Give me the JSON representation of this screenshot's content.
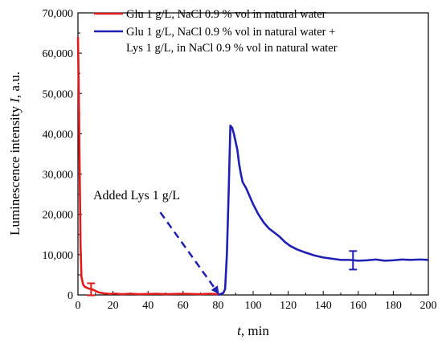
{
  "chart_data": {
    "type": "line",
    "xlabel": "t, min",
    "ylabel": "Luminescence intensity I, a.u.",
    "xlim": [
      0,
      200
    ],
    "ylim": [
      0,
      70000
    ],
    "x_ticks": [
      0,
      20,
      40,
      60,
      80,
      100,
      120,
      140,
      160,
      180,
      200
    ],
    "y_ticks": [
      0,
      10000,
      20000,
      30000,
      40000,
      50000,
      60000,
      70000
    ],
    "x_tick_labels": [
      "0",
      "20",
      "40",
      "60",
      "80",
      "100",
      "120",
      "140",
      "160",
      "180",
      "200"
    ],
    "y_tick_labels": [
      "0",
      "10,000",
      "20,000",
      "30,000",
      "40,000",
      "50,000",
      "60,000",
      "70,000"
    ],
    "grid": false,
    "legend_position": "top-right",
    "series": [
      {
        "name": "Glu 1 g/L, NaCl 0.9 % vol in natural water",
        "color": "#e31a1c",
        "x": [
          0,
          0.5,
          1,
          1.5,
          2,
          3,
          4,
          5,
          6,
          8,
          10,
          12,
          15,
          18,
          21,
          25,
          30,
          35,
          40,
          45,
          50,
          55,
          60,
          65,
          70,
          75,
          80
        ],
        "y": [
          64000,
          50000,
          30000,
          12000,
          4500,
          2500,
          2000,
          1800,
          1600,
          1400,
          1000,
          600,
          400,
          250,
          350,
          200,
          300,
          200,
          250,
          300,
          200,
          250,
          300,
          250,
          200,
          300,
          200
        ],
        "error_bar": {
          "x": 7.5,
          "y": 1400,
          "err": 1500
        }
      },
      {
        "name": "Glu 1 g/L, NaCl 0.9 % vol in natural water + Lys 1 g/L, in NaCl 0.9 % vol in natural water",
        "color": "#1f1fb4",
        "x": [
          80,
          83,
          84,
          85,
          86,
          87,
          88,
          89,
          90,
          91,
          92,
          93,
          94,
          96,
          98,
          100,
          103,
          106,
          109,
          112,
          115,
          118,
          121,
          125,
          130,
          135,
          140,
          145,
          150,
          155,
          160,
          165,
          170,
          175,
          180,
          185,
          190,
          195,
          200
        ],
        "y": [
          0,
          500,
          1500,
          10000,
          25000,
          42000,
          41500,
          40000,
          38000,
          36000,
          32500,
          30000,
          28000,
          26500,
          24500,
          22500,
          20000,
          18000,
          16500,
          15500,
          14500,
          13200,
          12200,
          11300,
          10500,
          9800,
          9300,
          9000,
          8700,
          8700,
          8500,
          8600,
          8800,
          8500,
          8600,
          8800,
          8700,
          8800,
          8700
        ],
        "error_bar": {
          "x": 157,
          "y": 8600,
          "err": 2300
        }
      }
    ],
    "annotation": {
      "text": "Added Lys 1 g/L",
      "arrow_from": [
        47,
        20500
      ],
      "arrow_to": [
        80,
        500
      ],
      "color": "#1f1fb4"
    }
  },
  "legend": {
    "item1": "Glu 1 g/L, NaCl 0.9 % vol in natural water",
    "item2_line1": "Glu 1 g/L, NaCl 0.9 % vol in natural water +",
    "item2_line2": "Lys 1 g/L, in NaCl 0.9 % vol in natural water"
  },
  "annotation_text": "Added Lys 1 g/L",
  "axis": {
    "x_label_var": "t",
    "x_label_rest": ", min",
    "y_label_main": "Luminescence intensity ",
    "y_label_var": "I",
    "y_label_rest": ", a.u."
  }
}
